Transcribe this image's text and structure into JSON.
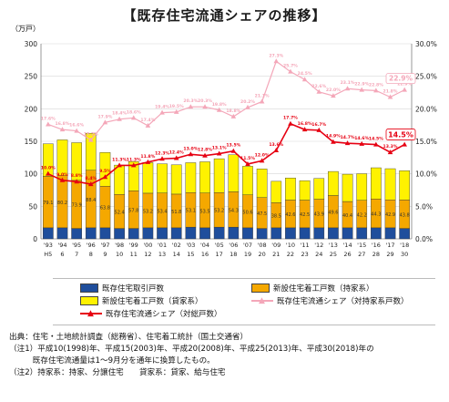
{
  "title": "【既存住宅流通シェアの推移】",
  "unit_label": "（万戸）",
  "chart_data": {
    "type": "bar",
    "stacked": true,
    "categories": [
      "'93",
      "'94",
      "'95",
      "'96",
      "'97",
      "'98",
      "'99",
      "'00",
      "'01",
      "'02",
      "'03",
      "'04",
      "'05",
      "'06",
      "'07",
      "'08",
      "'09",
      "'10",
      "'11",
      "'12",
      "'13",
      "'14",
      "'15",
      "'16",
      "'17",
      "'18"
    ],
    "era_labels": [
      "H5",
      "6",
      "7",
      "8",
      "9",
      "10",
      "11",
      "12",
      "13",
      "14",
      "15",
      "16",
      "17",
      "18",
      "19",
      "20",
      "21",
      "22",
      "23",
      "24",
      "25",
      "26",
      "27",
      "28",
      "29",
      "30"
    ],
    "ylim_left": [
      0,
      300
    ],
    "ylim_right": [
      0,
      30
    ],
    "yticks_left": [
      "0",
      "50",
      "100",
      "150",
      "200",
      "250",
      "300"
    ],
    "yticks_right": [
      "0.0%",
      "5.0%",
      "10.0%",
      "15.0%",
      "20.0%",
      "25.0%",
      "30.0%"
    ],
    "series": [
      {
        "name": "既存住宅取引戸数",
        "color": "#1f4e9c",
        "values": [
          17,
          17,
          16,
          17,
          17,
          16,
          16,
          17,
          17,
          17,
          18,
          17,
          18,
          18,
          17,
          16,
          17,
          17,
          17,
          17,
          17,
          17,
          17,
          17,
          17,
          16
        ]
      },
      {
        "name": "新設住宅着工戸数（持家系）",
        "color": "#f5a800",
        "values": [
          79.1,
          80.2,
          73.9,
          88.4,
          63.8,
          52.4,
          57.8,
          53.2,
          53.4,
          51.8,
          53.1,
          53.5,
          53.2,
          54.3,
          50.6,
          47.5,
          38.5,
          42.6,
          42.5,
          43.9,
          49.6,
          40.4,
          42.2,
          44.3,
          42.9,
          43.8
        ]
      },
      {
        "name": "新設住宅着工戸数（貸家系）",
        "color": "#fff200",
        "values": [
          50,
          55,
          58,
          57,
          52,
          45,
          45,
          47,
          45,
          45,
          46,
          48,
          52,
          57,
          44,
          44,
          33,
          34,
          30,
          32,
          37,
          42,
          41,
          48,
          48,
          45
        ]
      }
    ],
    "bar_labels": [
      "79.1",
      "80.2",
      "73.9",
      "88.4",
      "63.8",
      "52.4",
      "57.8",
      "53.2",
      "53.4",
      "51.8",
      "53.1",
      "53.5",
      "53.2",
      "54.3",
      "50.6",
      "47.5",
      "38.5",
      "42.6",
      "42.5",
      "43.9",
      "49.6",
      "40.4",
      "42.2",
      "44.3",
      "42.9",
      "43.8"
    ],
    "lines": [
      {
        "name": "既存住宅流通シェア（対持家系戸数）",
        "color": "#f4a7b9",
        "marker": "triangle",
        "values": [
          17.6,
          16.8,
          16.6,
          15.2,
          17.9,
          18.4,
          18.6,
          17.4,
          19.4,
          19.5,
          20.3,
          20.3,
          19.8,
          18.8,
          20.2,
          21.1,
          27.3,
          25.7,
          24.5,
          22.6,
          22.0,
          23.1,
          22.9,
          22.8,
          21.8,
          22.9
        ]
      },
      {
        "name": "既存住宅流通シェア（対総戸数）",
        "color": "#e60012",
        "marker": "triangle",
        "values": [
          10.0,
          9.0,
          8.8,
          8.4,
          9.5,
          11.3,
          11.3,
          11.8,
          12.3,
          12.4,
          13.0,
          12.8,
          13.1,
          13.5,
          11.5,
          12.0,
          13.6,
          17.7,
          16.8,
          16.7,
          14.9,
          14.7,
          14.6,
          14.5,
          13.3,
          14.5
        ]
      }
    ],
    "annotations": [
      "22.9%",
      "14.5%"
    ]
  },
  "notes": [
    "出典：住宅・土地統計調査（総務省）、住宅着工統計（国土交通省）",
    "（注1）平成10(1998)年、平成15(2003)年、平成20(2008)年、平成25(2013)年、平成30(2018)年の",
    "　　　既存住宅流通量は1～9月分を通年に換算したもの。",
    "（注2）持家系：持家、分譲住宅　　貸家系：貸家、給与住宅"
  ]
}
